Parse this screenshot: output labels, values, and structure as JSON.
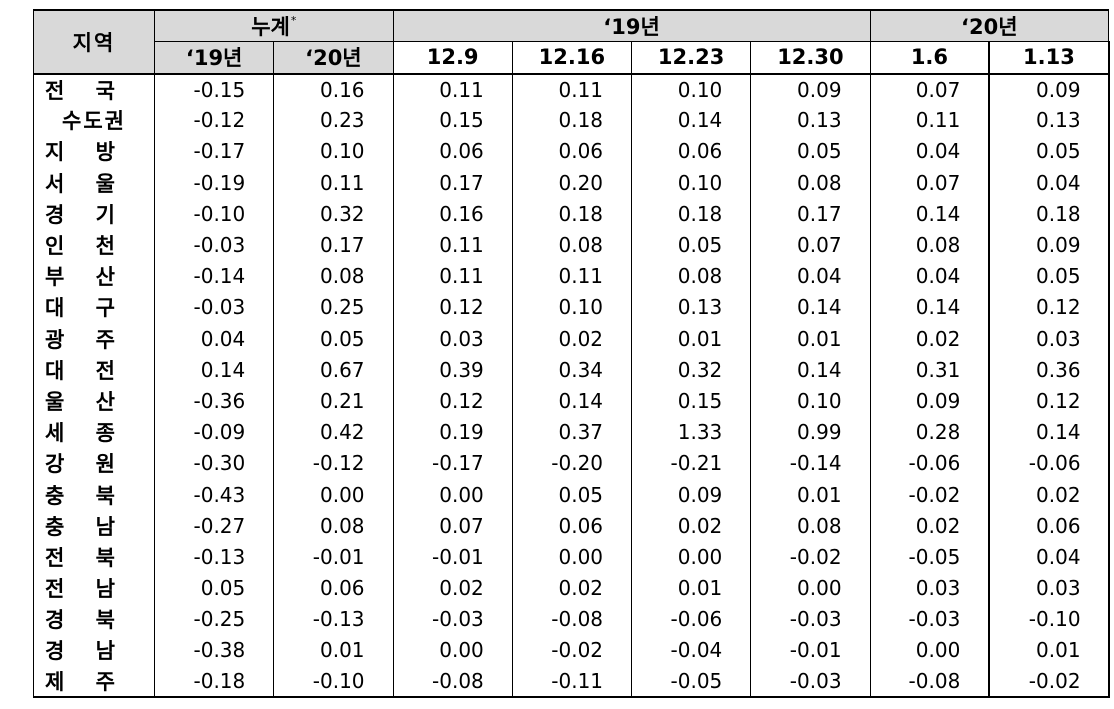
{
  "table": {
    "region_header": "지역",
    "groups": [
      {
        "label": "누계",
        "mark": "*"
      },
      {
        "label": "‘19년"
      },
      {
        "label": "‘20년"
      }
    ],
    "columns": [
      "‘19년",
      "‘20년",
      "12.9",
      "12.16",
      "12.23",
      "12.30",
      "1.6",
      "1.13"
    ],
    "rows": [
      {
        "region": [
          "전",
          "국"
        ],
        "values": [
          "-0.15",
          "0.16",
          "0.11",
          "0.11",
          "0.10",
          "0.09",
          "0.07",
          "0.09"
        ]
      },
      {
        "region": [
          "수도권"
        ],
        "values": [
          "-0.12",
          "0.23",
          "0.15",
          "0.18",
          "0.14",
          "0.13",
          "0.11",
          "0.13"
        ]
      },
      {
        "region": [
          "지",
          "방"
        ],
        "values": [
          "-0.17",
          "0.10",
          "0.06",
          "0.06",
          "0.06",
          "0.05",
          "0.04",
          "0.05"
        ]
      },
      {
        "region": [
          "서",
          "울"
        ],
        "values": [
          "-0.19",
          "0.11",
          "0.17",
          "0.20",
          "0.10",
          "0.08",
          "0.07",
          "0.04"
        ]
      },
      {
        "region": [
          "경",
          "기"
        ],
        "values": [
          "-0.10",
          "0.32",
          "0.16",
          "0.18",
          "0.18",
          "0.17",
          "0.14",
          "0.18"
        ]
      },
      {
        "region": [
          "인",
          "천"
        ],
        "values": [
          "-0.03",
          "0.17",
          "0.11",
          "0.08",
          "0.05",
          "0.07",
          "0.08",
          "0.09"
        ]
      },
      {
        "region": [
          "부",
          "산"
        ],
        "values": [
          "-0.14",
          "0.08",
          "0.11",
          "0.11",
          "0.08",
          "0.04",
          "0.04",
          "0.05"
        ]
      },
      {
        "region": [
          "대",
          "구"
        ],
        "values": [
          "-0.03",
          "0.25",
          "0.12",
          "0.10",
          "0.13",
          "0.14",
          "0.14",
          "0.12"
        ]
      },
      {
        "region": [
          "광",
          "주"
        ],
        "values": [
          "0.04",
          "0.05",
          "0.03",
          "0.02",
          "0.01",
          "0.01",
          "0.02",
          "0.03"
        ]
      },
      {
        "region": [
          "대",
          "전"
        ],
        "values": [
          "0.14",
          "0.67",
          "0.39",
          "0.34",
          "0.32",
          "0.14",
          "0.31",
          "0.36"
        ]
      },
      {
        "region": [
          "울",
          "산"
        ],
        "values": [
          "-0.36",
          "0.21",
          "0.12",
          "0.14",
          "0.15",
          "0.10",
          "0.09",
          "0.12"
        ]
      },
      {
        "region": [
          "세",
          "종"
        ],
        "values": [
          "-0.09",
          "0.42",
          "0.19",
          "0.37",
          "1.33",
          "0.99",
          "0.28",
          "0.14"
        ]
      },
      {
        "region": [
          "강",
          "원"
        ],
        "values": [
          "-0.30",
          "-0.12",
          "-0.17",
          "-0.20",
          "-0.21",
          "-0.14",
          "-0.06",
          "-0.06"
        ]
      },
      {
        "region": [
          "충",
          "북"
        ],
        "values": [
          "-0.43",
          "0.00",
          "0.00",
          "0.05",
          "0.09",
          "0.01",
          "-0.02",
          "0.02"
        ]
      },
      {
        "region": [
          "충",
          "남"
        ],
        "values": [
          "-0.27",
          "0.08",
          "0.07",
          "0.06",
          "0.02",
          "0.08",
          "0.02",
          "0.06"
        ]
      },
      {
        "region": [
          "전",
          "북"
        ],
        "values": [
          "-0.13",
          "-0.01",
          "-0.01",
          "0.00",
          "0.00",
          "-0.02",
          "-0.05",
          "0.04"
        ]
      },
      {
        "region": [
          "전",
          "남"
        ],
        "values": [
          "0.05",
          "0.06",
          "0.02",
          "0.02",
          "0.01",
          "0.00",
          "0.03",
          "0.03"
        ]
      },
      {
        "region": [
          "경",
          "북"
        ],
        "values": [
          "-0.25",
          "-0.13",
          "-0.03",
          "-0.08",
          "-0.06",
          "-0.03",
          "-0.03",
          "-0.10"
        ]
      },
      {
        "region": [
          "경",
          "남"
        ],
        "values": [
          "-0.38",
          "0.01",
          "0.00",
          "-0.02",
          "-0.04",
          "-0.01",
          "0.00",
          "0.01"
        ]
      },
      {
        "region": [
          "제",
          "주"
        ],
        "values": [
          "-0.18",
          "-0.10",
          "-0.08",
          "-0.11",
          "-0.05",
          "-0.03",
          "-0.08",
          "-0.02"
        ]
      }
    ]
  }
}
